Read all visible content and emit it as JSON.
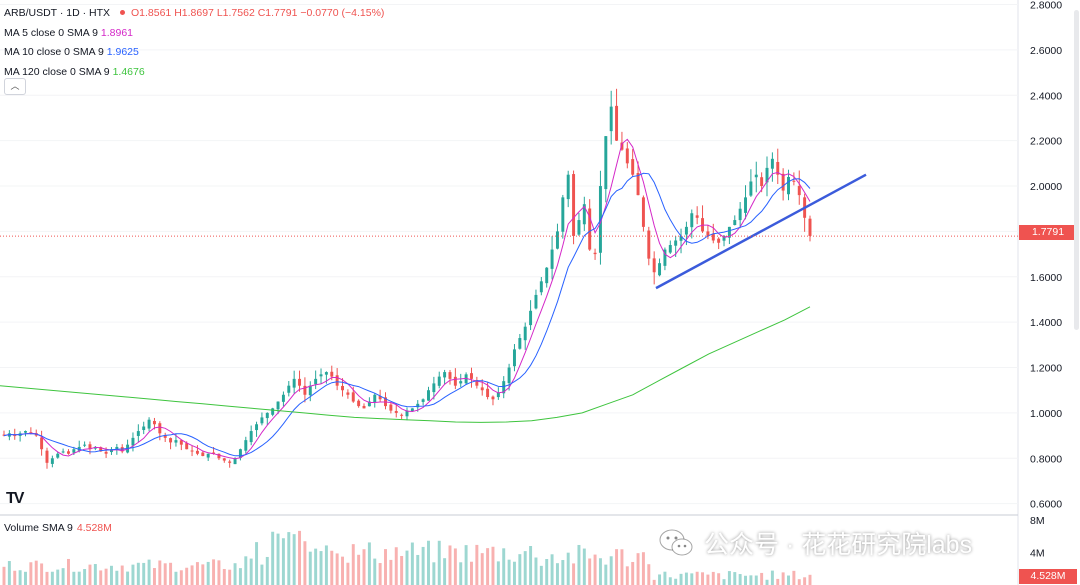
{
  "legend": {
    "symbol": "ARB/USDT · 1D · HTX",
    "open": "O1.8561",
    "high": "H1.8697",
    "low": "L1.7562",
    "close": "C1.7791",
    "change": "−0.0770 (−4.15%)",
    "ma5_label": "MA 5 close 0 SMA 9",
    "ma5_value": "1.8961",
    "ma10_label": "MA 10 close 0 SMA 9",
    "ma10_value": "1.9625",
    "ma120_label": "MA 120 close 0 SMA 9",
    "ma120_value": "1.4676",
    "collapse_glyph": "︿"
  },
  "volume_legend": {
    "label": "Volume SMA 9",
    "value": "4.528M"
  },
  "logo": "TV",
  "watermark": "公众号 · 花花研究院labs",
  "colors": {
    "up": "#26a69a",
    "down": "#ef5350",
    "ma5": "#d428c8",
    "ma10": "#2962ff",
    "ma120": "#3ec43e",
    "trendline": "#3b5bdb"
  },
  "chart_data": {
    "type": "candlestick",
    "interval": "1D",
    "price_axis": {
      "ticks": [
        "2.8000",
        "2.6000",
        "2.4000",
        "2.2000",
        "2.0000",
        "1.8000",
        "1.6000",
        "1.4000",
        "1.2000",
        "1.0000",
        "0.8000",
        "0.6000"
      ],
      "range": [
        0.55,
        2.82
      ]
    },
    "volume_axis": {
      "ticks": [
        "8M",
        "4M"
      ],
      "range": [
        0,
        8.6
      ]
    },
    "last_price": "1.7791",
    "last_volume": "4.528M",
    "closes": [
      0.9,
      0.91,
      0.9,
      0.91,
      0.92,
      0.91,
      0.9,
      0.84,
      0.78,
      0.8,
      0.82,
      0.83,
      0.82,
      0.84,
      0.85,
      0.86,
      0.84,
      0.85,
      0.83,
      0.82,
      0.84,
      0.85,
      0.83,
      0.86,
      0.89,
      0.92,
      0.94,
      0.97,
      0.95,
      0.91,
      0.89,
      0.87,
      0.88,
      0.86,
      0.84,
      0.83,
      0.82,
      0.81,
      0.82,
      0.82,
      0.8,
      0.79,
      0.78,
      0.8,
      0.84,
      0.88,
      0.92,
      0.95,
      0.98,
      1.0,
      1.02,
      1.05,
      1.08,
      1.12,
      1.15,
      1.12,
      1.08,
      1.12,
      1.15,
      1.17,
      1.18,
      1.16,
      1.12,
      1.1,
      1.08,
      1.05,
      1.03,
      1.02,
      1.05,
      1.08,
      1.06,
      1.03,
      1.01,
      1.0,
      0.99,
      1.01,
      1.02,
      1.04,
      1.06,
      1.1,
      1.13,
      1.16,
      1.18,
      1.15,
      1.12,
      1.14,
      1.17,
      1.15,
      1.12,
      1.1,
      1.07,
      1.06,
      1.09,
      1.14,
      1.2,
      1.28,
      1.33,
      1.38,
      1.45,
      1.52,
      1.58,
      1.64,
      1.72,
      1.8,
      1.95,
      2.05,
      1.78,
      1.85,
      1.92,
      1.72,
      1.7,
      2.0,
      2.22,
      2.35,
      2.2,
      2.16,
      2.1,
      2.05,
      1.96,
      1.82,
      1.68,
      1.62,
      1.66,
      1.72,
      1.74,
      1.76,
      1.78,
      1.82,
      1.88,
      1.86,
      1.8,
      1.78,
      1.76,
      1.75,
      1.78,
      1.82,
      1.85,
      1.9,
      1.95,
      2.02,
      2.05,
      2.0,
      2.08,
      2.12,
      2.05,
      1.98,
      2.04,
      2.02,
      1.96,
      1.86,
      1.78
    ],
    "ma_series": [
      {
        "name": "MA 5 close 0 SMA 9",
        "value": "1.8961"
      },
      {
        "name": "MA 10 close 0 SMA 9",
        "value": "1.9625"
      },
      {
        "name": "MA 120 close 0 SMA 9",
        "value": "1.4676"
      }
    ],
    "ma120_curve": [
      1.12,
      1.11,
      1.1,
      1.09,
      1.08,
      1.07,
      1.06,
      1.05,
      1.04,
      1.03,
      1.02,
      1.01,
      1.0,
      0.99,
      0.98,
      0.975,
      0.97,
      0.965,
      0.96,
      0.958,
      0.96,
      0.965,
      0.98,
      1.0,
      1.04,
      1.08,
      1.14,
      1.2,
      1.26,
      1.31,
      1.36,
      1.41,
      1.4676
    ],
    "trendline": [
      {
        "x": 0,
        "y": 1.55
      },
      {
        "x": 1,
        "y": 2.05
      }
    ],
    "grid": true,
    "legend_position": "top-left"
  }
}
